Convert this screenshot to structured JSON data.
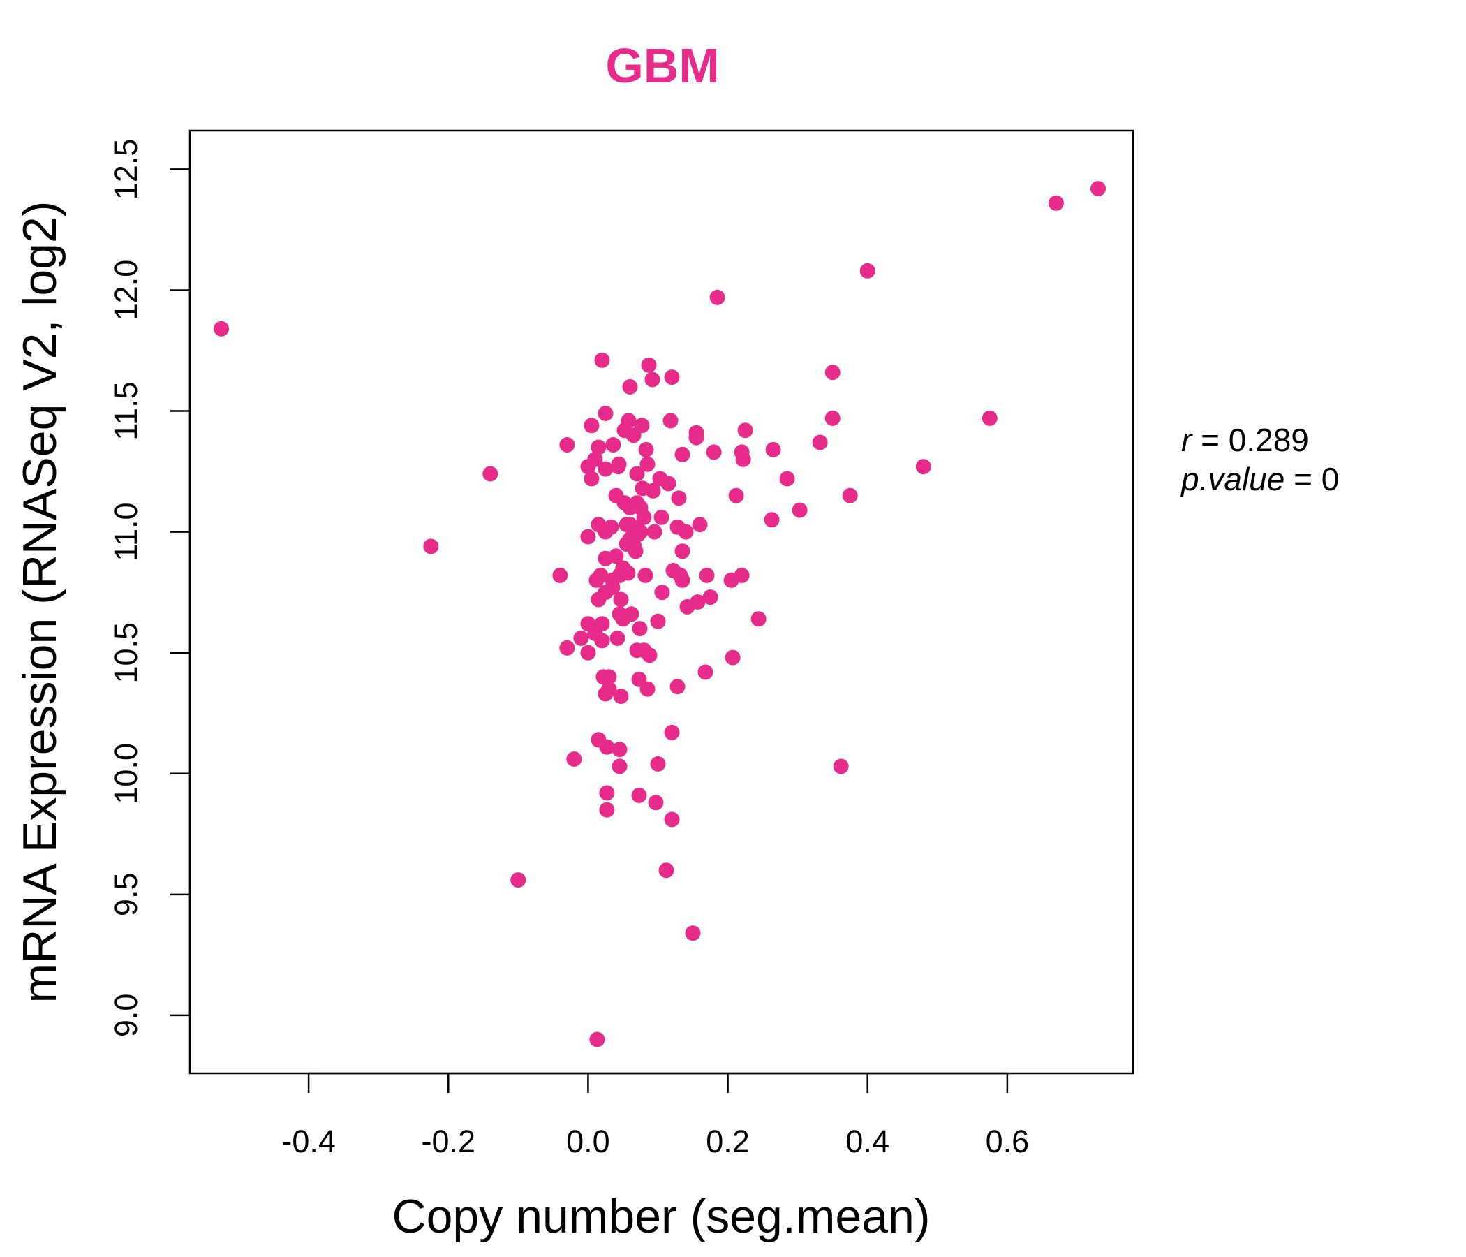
{
  "chart_data": {
    "type": "scatter",
    "title": "GBM",
    "xlabel": "Copy number (seg.mean)",
    "ylabel": "mRNA Expression (RNASeq V2, log2)",
    "xlim": [
      -0.57,
      0.78
    ],
    "ylim": [
      8.76,
      12.66
    ],
    "x_ticks": [
      -0.4,
      -0.2,
      0.0,
      0.2,
      0.4,
      0.6
    ],
    "x_tick_labels": [
      "-0.4",
      "-0.2",
      "0.0",
      "0.2",
      "0.4",
      "0.6"
    ],
    "y_ticks": [
      9.0,
      9.5,
      10.0,
      10.5,
      11.0,
      11.5,
      12.0,
      12.5
    ],
    "y_tick_labels": [
      "9.0",
      "9.5",
      "10.0",
      "10.5",
      "11.0",
      "11.5",
      "12.0",
      "12.5"
    ],
    "grid": false,
    "colors": {
      "points": "#e62b8a",
      "title": "#e62b8a",
      "frame": "#000000"
    },
    "stats": {
      "r_label": "r",
      "r_value": "0.289",
      "p_label": "p.value",
      "p_value": "0"
    },
    "points": [
      {
        "x": -0.525,
        "y": 11.84
      },
      {
        "x": -0.225,
        "y": 10.94
      },
      {
        "x": -0.14,
        "y": 11.24
      },
      {
        "x": -0.1,
        "y": 9.56
      },
      {
        "x": -0.04,
        "y": 10.82
      },
      {
        "x": -0.03,
        "y": 11.36
      },
      {
        "x": -0.03,
        "y": 10.52
      },
      {
        "x": -0.02,
        "y": 10.06
      },
      {
        "x": -0.01,
        "y": 10.56
      },
      {
        "x": 0.0,
        "y": 10.98
      },
      {
        "x": 0.0,
        "y": 10.62
      },
      {
        "x": 0.0,
        "y": 10.5
      },
      {
        "x": 0.0,
        "y": 11.27
      },
      {
        "x": 0.005,
        "y": 11.22
      },
      {
        "x": 0.005,
        "y": 11.44
      },
      {
        "x": 0.01,
        "y": 11.3
      },
      {
        "x": 0.01,
        "y": 10.58
      },
      {
        "x": 0.012,
        "y": 10.8
      },
      {
        "x": 0.013,
        "y": 8.9
      },
      {
        "x": 0.015,
        "y": 11.35
      },
      {
        "x": 0.015,
        "y": 11.03
      },
      {
        "x": 0.015,
        "y": 10.72
      },
      {
        "x": 0.015,
        "y": 10.14
      },
      {
        "x": 0.018,
        "y": 10.82
      },
      {
        "x": 0.02,
        "y": 10.62
      },
      {
        "x": 0.02,
        "y": 10.55
      },
      {
        "x": 0.02,
        "y": 11.71
      },
      {
        "x": 0.022,
        "y": 10.4
      },
      {
        "x": 0.025,
        "y": 11.49
      },
      {
        "x": 0.025,
        "y": 11.26
      },
      {
        "x": 0.025,
        "y": 11.0
      },
      {
        "x": 0.025,
        "y": 10.89
      },
      {
        "x": 0.025,
        "y": 10.75
      },
      {
        "x": 0.025,
        "y": 10.33
      },
      {
        "x": 0.027,
        "y": 10.11
      },
      {
        "x": 0.027,
        "y": 9.92
      },
      {
        "x": 0.027,
        "y": 9.85
      },
      {
        "x": 0.03,
        "y": 10.4
      },
      {
        "x": 0.03,
        "y": 10.35
      },
      {
        "x": 0.033,
        "y": 11.02
      },
      {
        "x": 0.035,
        "y": 10.8
      },
      {
        "x": 0.035,
        "y": 10.77
      },
      {
        "x": 0.036,
        "y": 11.36
      },
      {
        "x": 0.04,
        "y": 11.15
      },
      {
        "x": 0.04,
        "y": 10.9
      },
      {
        "x": 0.042,
        "y": 10.56
      },
      {
        "x": 0.043,
        "y": 11.27
      },
      {
        "x": 0.044,
        "y": 11.28
      },
      {
        "x": 0.045,
        "y": 10.82
      },
      {
        "x": 0.045,
        "y": 10.66
      },
      {
        "x": 0.045,
        "y": 10.1
      },
      {
        "x": 0.045,
        "y": 10.03
      },
      {
        "x": 0.047,
        "y": 10.72
      },
      {
        "x": 0.047,
        "y": 10.32
      },
      {
        "x": 0.05,
        "y": 10.85
      },
      {
        "x": 0.05,
        "y": 10.64
      },
      {
        "x": 0.052,
        "y": 11.42
      },
      {
        "x": 0.052,
        "y": 11.12
      },
      {
        "x": 0.055,
        "y": 11.03
      },
      {
        "x": 0.055,
        "y": 10.95
      },
      {
        "x": 0.057,
        "y": 10.83
      },
      {
        "x": 0.058,
        "y": 11.46
      },
      {
        "x": 0.06,
        "y": 11.6
      },
      {
        "x": 0.06,
        "y": 11.1
      },
      {
        "x": 0.06,
        "y": 11.03
      },
      {
        "x": 0.06,
        "y": 10.97
      },
      {
        "x": 0.062,
        "y": 10.66
      },
      {
        "x": 0.065,
        "y": 11.4
      },
      {
        "x": 0.065,
        "y": 11.02
      },
      {
        "x": 0.066,
        "y": 10.94
      },
      {
        "x": 0.068,
        "y": 10.92
      },
      {
        "x": 0.07,
        "y": 11.24
      },
      {
        "x": 0.07,
        "y": 11.12
      },
      {
        "x": 0.07,
        "y": 10.51
      },
      {
        "x": 0.072,
        "y": 10.99
      },
      {
        "x": 0.073,
        "y": 10.39
      },
      {
        "x": 0.073,
        "y": 9.91
      },
      {
        "x": 0.074,
        "y": 10.6
      },
      {
        "x": 0.075,
        "y": 11.1
      },
      {
        "x": 0.075,
        "y": 11.0
      },
      {
        "x": 0.077,
        "y": 11.44
      },
      {
        "x": 0.078,
        "y": 11.18
      },
      {
        "x": 0.08,
        "y": 11.06
      },
      {
        "x": 0.08,
        "y": 10.51
      },
      {
        "x": 0.082,
        "y": 10.82
      },
      {
        "x": 0.083,
        "y": 11.34
      },
      {
        "x": 0.085,
        "y": 11.28
      },
      {
        "x": 0.085,
        "y": 10.35
      },
      {
        "x": 0.087,
        "y": 11.69
      },
      {
        "x": 0.088,
        "y": 10.49
      },
      {
        "x": 0.092,
        "y": 11.63
      },
      {
        "x": 0.093,
        "y": 11.17
      },
      {
        "x": 0.095,
        "y": 11.0
      },
      {
        "x": 0.097,
        "y": 9.88
      },
      {
        "x": 0.1,
        "y": 10.04
      },
      {
        "x": 0.1,
        "y": 10.63
      },
      {
        "x": 0.103,
        "y": 11.22
      },
      {
        "x": 0.105,
        "y": 11.06
      },
      {
        "x": 0.106,
        "y": 10.75
      },
      {
        "x": 0.112,
        "y": 9.6
      },
      {
        "x": 0.115,
        "y": 11.2
      },
      {
        "x": 0.118,
        "y": 11.46
      },
      {
        "x": 0.12,
        "y": 11.64
      },
      {
        "x": 0.12,
        "y": 10.17
      },
      {
        "x": 0.12,
        "y": 9.81
      },
      {
        "x": 0.122,
        "y": 10.84
      },
      {
        "x": 0.128,
        "y": 11.02
      },
      {
        "x": 0.128,
        "y": 10.36
      },
      {
        "x": 0.13,
        "y": 11.14
      },
      {
        "x": 0.132,
        "y": 10.82
      },
      {
        "x": 0.135,
        "y": 10.8
      },
      {
        "x": 0.135,
        "y": 10.92
      },
      {
        "x": 0.135,
        "y": 11.32
      },
      {
        "x": 0.14,
        "y": 11.0
      },
      {
        "x": 0.142,
        "y": 10.69
      },
      {
        "x": 0.15,
        "y": 9.34
      },
      {
        "x": 0.155,
        "y": 11.39
      },
      {
        "x": 0.155,
        "y": 11.41
      },
      {
        "x": 0.157,
        "y": 10.71
      },
      {
        "x": 0.16,
        "y": 11.03
      },
      {
        "x": 0.168,
        "y": 10.42
      },
      {
        "x": 0.17,
        "y": 10.82
      },
      {
        "x": 0.175,
        "y": 10.73
      },
      {
        "x": 0.18,
        "y": 11.33
      },
      {
        "x": 0.185,
        "y": 11.97
      },
      {
        "x": 0.205,
        "y": 10.8
      },
      {
        "x": 0.207,
        "y": 10.48
      },
      {
        "x": 0.212,
        "y": 11.15
      },
      {
        "x": 0.22,
        "y": 10.82
      },
      {
        "x": 0.22,
        "y": 11.33
      },
      {
        "x": 0.222,
        "y": 11.3
      },
      {
        "x": 0.225,
        "y": 11.42
      },
      {
        "x": 0.244,
        "y": 10.64
      },
      {
        "x": 0.263,
        "y": 11.05
      },
      {
        "x": 0.265,
        "y": 11.34
      },
      {
        "x": 0.285,
        "y": 11.22
      },
      {
        "x": 0.303,
        "y": 11.09
      },
      {
        "x": 0.332,
        "y": 11.37
      },
      {
        "x": 0.35,
        "y": 11.66
      },
      {
        "x": 0.35,
        "y": 11.47
      },
      {
        "x": 0.362,
        "y": 10.03
      },
      {
        "x": 0.375,
        "y": 11.15
      },
      {
        "x": 0.4,
        "y": 12.08
      },
      {
        "x": 0.48,
        "y": 11.27
      },
      {
        "x": 0.575,
        "y": 11.47
      },
      {
        "x": 0.67,
        "y": 12.36
      },
      {
        "x": 0.73,
        "y": 12.42
      }
    ]
  }
}
